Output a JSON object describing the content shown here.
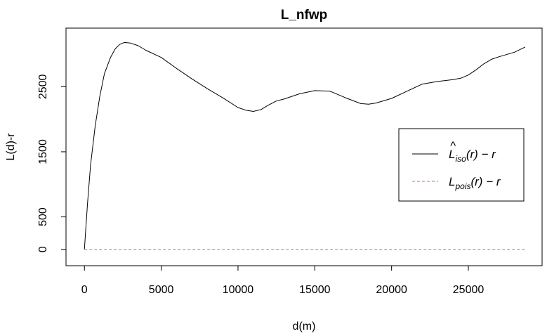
{
  "chart_data": {
    "type": "line",
    "title": "L_nfwp",
    "xlabel": "d(m)",
    "ylabel": "L(d)-r",
    "xlim": [
      -1200,
      29800
    ],
    "ylim": [
      -250,
      3400
    ],
    "x_ticks": [
      0,
      5000,
      10000,
      15000,
      20000,
      25000
    ],
    "x_tick_labels": [
      "0",
      "5000",
      "10000",
      "15000",
      "20000",
      "25000"
    ],
    "y_ticks": [
      0,
      500,
      1500,
      2500
    ],
    "y_tick_labels": [
      "0",
      "500",
      "1500",
      "2500"
    ],
    "grid": false,
    "legend_placement": "right",
    "series": [
      {
        "name": "L̂iso(r) − r",
        "label_main": "L",
        "label_hat": "^",
        "label_sub": "iso",
        "label_tail": "(r) − r",
        "color": "#000000",
        "dash": "solid",
        "x": [
          0,
          200,
          400,
          700,
          1000,
          1300,
          1700,
          2000,
          2300,
          2600,
          3000,
          3500,
          4000,
          5000,
          6000,
          7000,
          8000,
          9000,
          10000,
          10500,
          11000,
          11500,
          12000,
          12500,
          13000,
          14000,
          15000,
          16000,
          17000,
          18000,
          18500,
          19000,
          20000,
          21000,
          22000,
          23000,
          24000,
          24500,
          25000,
          25500,
          26000,
          26500,
          27000,
          28000,
          28700
        ],
        "y": [
          0,
          700,
          1300,
          1900,
          2350,
          2700,
          2950,
          3080,
          3150,
          3180,
          3170,
          3130,
          3060,
          2950,
          2780,
          2620,
          2470,
          2330,
          2180,
          2140,
          2120,
          2150,
          2220,
          2280,
          2310,
          2390,
          2440,
          2430,
          2330,
          2240,
          2230,
          2250,
          2320,
          2430,
          2540,
          2580,
          2610,
          2630,
          2680,
          2760,
          2850,
          2920,
          2960,
          3030,
          3110
        ]
      },
      {
        "name": "Lpois(r) − r",
        "label_main": "L",
        "label_sub": "pois",
        "label_tail": "(r) − r",
        "color": "#e06070",
        "dash": "dashed",
        "x": [
          0,
          28700
        ],
        "y": [
          0,
          0
        ]
      }
    ]
  }
}
